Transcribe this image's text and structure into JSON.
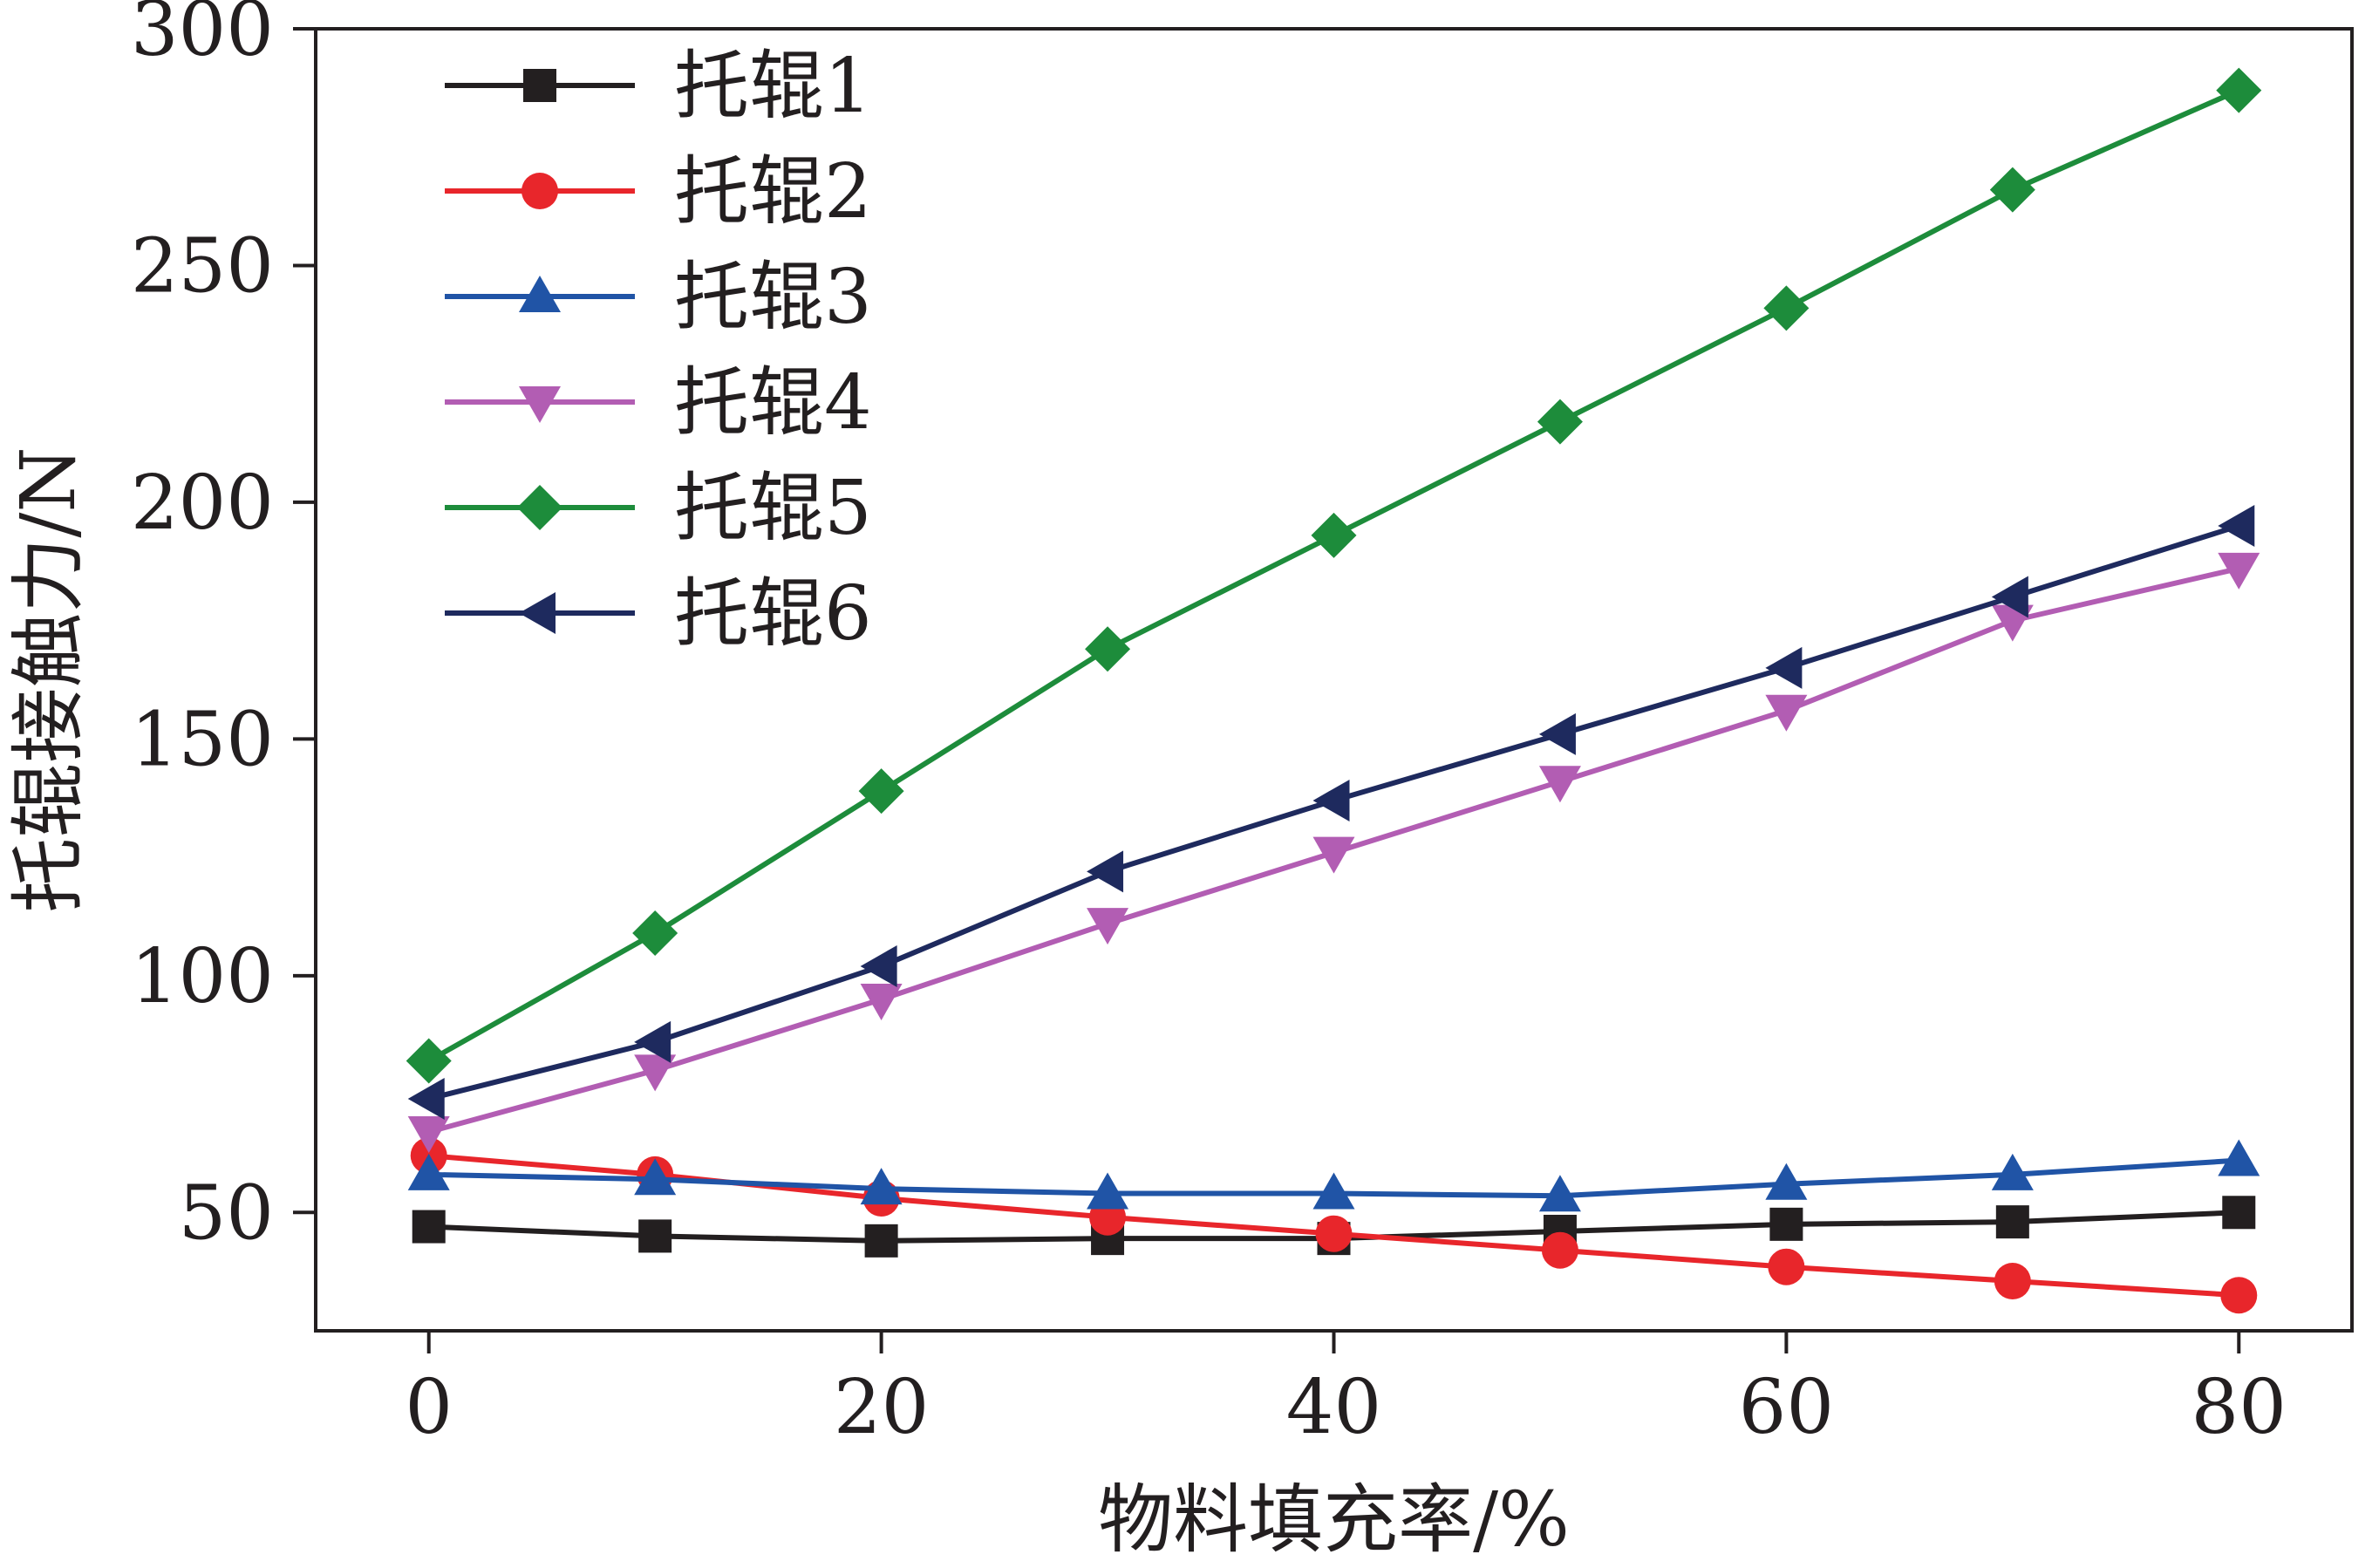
{
  "chart_data": {
    "type": "line",
    "title": "",
    "xlabel": "物料填充率/%",
    "ylabel": "托辊接触力/N",
    "x": [
      0,
      10,
      20,
      30,
      40,
      50,
      60,
      70,
      80
    ],
    "xlim": [
      -5,
      85
    ],
    "ylim": [
      25,
      300
    ],
    "x_ticks": [
      0,
      20,
      40,
      60,
      80
    ],
    "y_ticks": [
      50,
      100,
      150,
      200,
      250,
      300
    ],
    "grid": false,
    "legend_position": "top-left",
    "series": [
      {
        "name": "托辊1",
        "color": "#231f20",
        "marker": "square",
        "values": [
          47,
          45,
          44,
          44.5,
          44.5,
          46,
          47.5,
          48,
          50
        ]
      },
      {
        "name": "托辊2",
        "color": "#e8262b",
        "marker": "circle",
        "values": [
          62,
          58,
          53,
          49,
          45.5,
          42,
          38.5,
          35.5,
          32.5
        ]
      },
      {
        "name": "托辊3",
        "color": "#2054a6",
        "marker": "triangle-up",
        "values": [
          58,
          57,
          55,
          54,
          54,
          53.5,
          56,
          58,
          61
        ]
      },
      {
        "name": "托辊4",
        "color": "#b25db3",
        "marker": "triangle-down",
        "values": [
          67,
          80,
          95,
          111,
          126,
          141,
          156,
          175,
          186
        ]
      },
      {
        "name": "托辊5",
        "color": "#1d8c3b",
        "marker": "diamond",
        "values": [
          82,
          109,
          139,
          169,
          193,
          217,
          241,
          266,
          287
        ]
      },
      {
        "name": "托辊6",
        "color": "#1e2a5e",
        "marker": "triangle-left",
        "values": [
          74,
          86,
          102,
          122,
          137,
          151,
          165,
          180,
          195
        ]
      }
    ]
  }
}
